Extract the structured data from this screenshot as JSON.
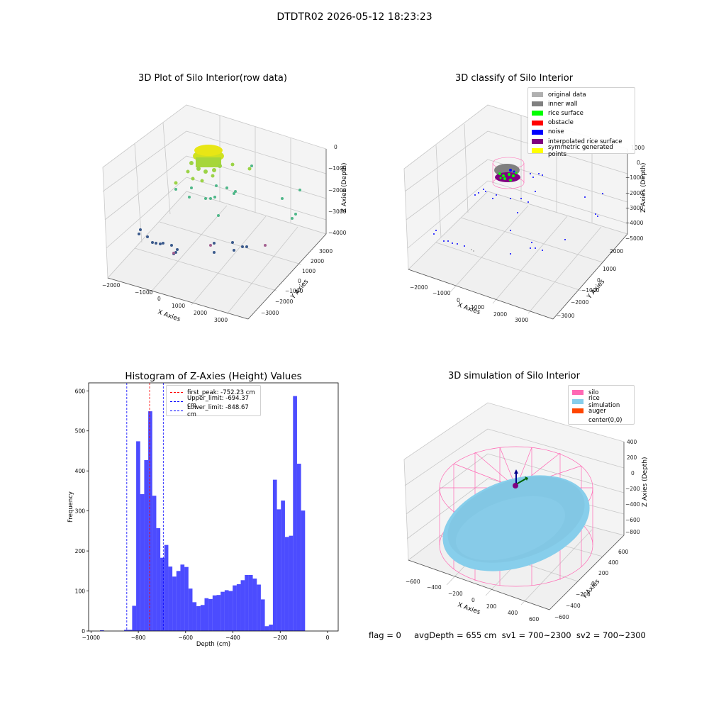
{
  "figure": {
    "suptitle": "DTDTR02 2026-05-12 18:23:23",
    "footer": "flag = 0     avgDepth = 655 cm  sv1 = 700~2300  sv2 = 700~2300"
  },
  "panels": {
    "raw": {
      "title": "3D Plot of Silo Interior(row data)",
      "xlabel": "X Axies",
      "ylabel": "Y Axies",
      "zlabel": "Z Axies (Depth)",
      "xticks": [
        "−2000",
        "−1000",
        "0",
        "1000",
        "2000",
        "3000"
      ],
      "yticks": [
        "3000",
        "2000",
        "1000",
        "0",
        "−1000",
        "−2000",
        "−3000"
      ],
      "zticks": [
        "0",
        "−1000",
        "−2000",
        "−3000",
        "−4000"
      ]
    },
    "classify": {
      "title": "3D classify of Silo Interior",
      "xlabel": "X Axies",
      "ylabel": "Y Axies",
      "zlabel": "Z Axies (Depth)",
      "xticks": [
        "−2000",
        "−1000",
        "0",
        "1000",
        "2000",
        "3000"
      ],
      "yticks": [
        "2000",
        "1000",
        "0",
        "−1000",
        "−2000",
        "−3000"
      ],
      "zticks": [
        "1000",
        "0",
        "−1000",
        "−2000",
        "−3000",
        "−4000",
        "−5000"
      ],
      "legend": [
        {
          "label": "original data",
          "color": "#b0b0b0"
        },
        {
          "label": "inner wall",
          "color": "#808080"
        },
        {
          "label": "rice surface",
          "color": "#00ff00"
        },
        {
          "label": "obstacle",
          "color": "#ff0000"
        },
        {
          "label": "noise",
          "color": "#0000ff"
        },
        {
          "label": "interpolated rice surface",
          "color": "#800080"
        },
        {
          "label": "symmetric generated points",
          "color": "#ffff00"
        }
      ]
    },
    "simulation": {
      "title": "3D simulation of Silo Interior",
      "xlabel": "X Axies",
      "ylabel": "Y Axies",
      "zlabel": "Z Axies (Depth)",
      "xticks": [
        "−600",
        "−400",
        "−200",
        "0",
        "200",
        "400",
        "600"
      ],
      "yticks": [
        "600",
        "400",
        "200",
        "0",
        "−200",
        "−400",
        "−600"
      ],
      "zticks": [
        "400",
        "200",
        "0",
        "−200",
        "−400",
        "−600",
        "−800"
      ],
      "legend": [
        {
          "label": "silo",
          "color": "#ff69b4"
        },
        {
          "label": "rice simulation",
          "color": "#87ceeb"
        },
        {
          "label": "auger",
          "color": "#ff4500"
        },
        {
          "label": "center(0,0)",
          "color": "#ffffff"
        }
      ]
    }
  },
  "chart_data": {
    "type": "bar",
    "title": "Histogram of Z-Axies (Height) Values",
    "xlabel": "Depth (cm)",
    "ylabel": "Frequency",
    "xlim": [
      -1010,
      45
    ],
    "ylim": [
      0,
      620
    ],
    "xticks": [
      -1000,
      -800,
      -600,
      -400,
      -200,
      0
    ],
    "yticks": [
      0,
      100,
      200,
      300,
      400,
      500,
      600
    ],
    "bin_width": 17,
    "bin_start": -826,
    "counts": [
      63,
      474,
      342,
      427,
      549,
      338,
      257,
      183,
      215,
      161,
      136,
      150,
      166,
      160,
      106,
      72,
      62,
      65,
      82,
      80,
      89,
      90,
      98,
      102,
      100,
      114,
      117,
      127,
      140,
      140,
      131,
      116,
      79,
      12,
      16,
      378,
      304,
      326,
      235,
      238,
      587,
      418,
      301
    ],
    "tail_bins": [
      {
        "x": -962,
        "count": 2
      },
      {
        "x": -860,
        "count": 3
      },
      {
        "x": -843,
        "count": 3
      }
    ],
    "bar_color": "#0000ff",
    "vlines": [
      {
        "label": "first_peak: -752.23 cm",
        "x": -752.23,
        "color": "#ff0000"
      },
      {
        "label": "Upper_limit: -694.37 cm",
        "x": -694.37,
        "color": "#0000ff"
      },
      {
        "label": "Lower_limit: -848.67 cm",
        "x": -848.67,
        "color": "#0000ff"
      }
    ]
  }
}
